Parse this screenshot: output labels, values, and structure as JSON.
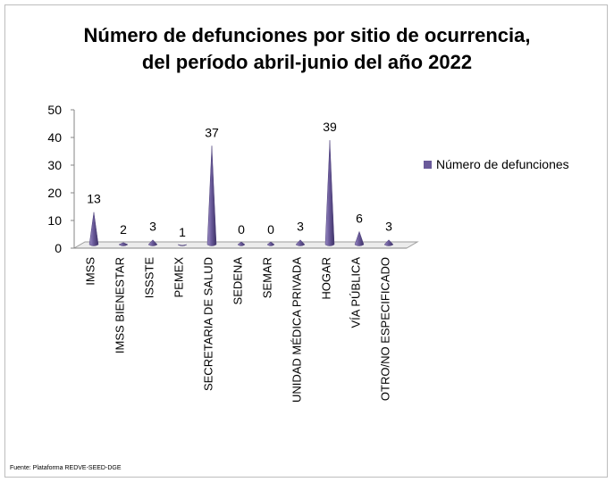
{
  "chart_data": {
    "type": "bar",
    "title_line1": "Número de defunciones por sitio de ocurrencia,",
    "title_line2": "del período abril-junio del año 2022",
    "categories": [
      "IMSS",
      "IMSS BIENESTAR",
      "ISSSTE",
      "PEMEX",
      "SECRETARIA DE SALUD",
      "SEDENA",
      "SEMAR",
      "UNIDAD MÉDICA PRIVADA",
      "HOGAR",
      "VÍA PÚBLICA",
      "OTRO/NO ESPECIFICADO"
    ],
    "series": [
      {
        "name": "Número de defunciones",
        "values": [
          13,
          2,
          3,
          1,
          37,
          0,
          0,
          3,
          39,
          6,
          3
        ],
        "color": "#6a5a9a"
      }
    ],
    "ylim": [
      0,
      50
    ],
    "yticks": [
      "0",
      "10",
      "20",
      "30",
      "40",
      "50"
    ],
    "legend_position": "right",
    "grid": false
  },
  "source": "Fuente: Plataforma REDVE-SEED-DGE"
}
